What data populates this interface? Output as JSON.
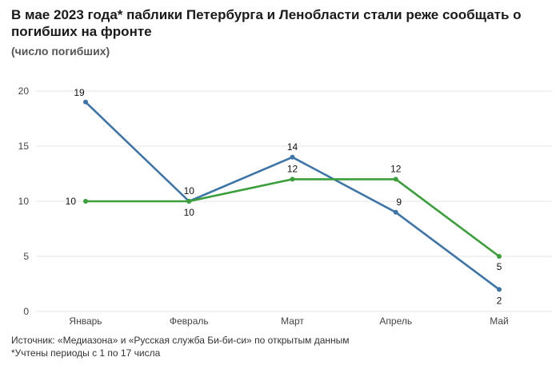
{
  "header": {
    "title": "В мае 2023 года* паблики Петербурга и Ленобласти стали реже сообщать о погибших на фронте",
    "subtitle": "(число погибших)"
  },
  "footer": {
    "source": "Источник: «Медиазона» и «Русская служба Би-би-си» по открытым данным",
    "note": "*Учтены периоды с 1 по 17 числа"
  },
  "chart_data": {
    "type": "line",
    "categories": [
      "Январь",
      "Февраль",
      "Март",
      "Апрель",
      "Май"
    ],
    "series": [
      {
        "values": [
          19,
          10,
          14,
          9,
          2
        ],
        "color": "#3e75a8"
      },
      {
        "values": [
          10,
          10,
          12,
          12,
          5
        ],
        "color": "#3a9e3a"
      }
    ],
    "yticks": [
      0,
      5,
      10,
      15,
      20
    ],
    "ylim": [
      0,
      20
    ],
    "grid": true,
    "legend": "none"
  }
}
